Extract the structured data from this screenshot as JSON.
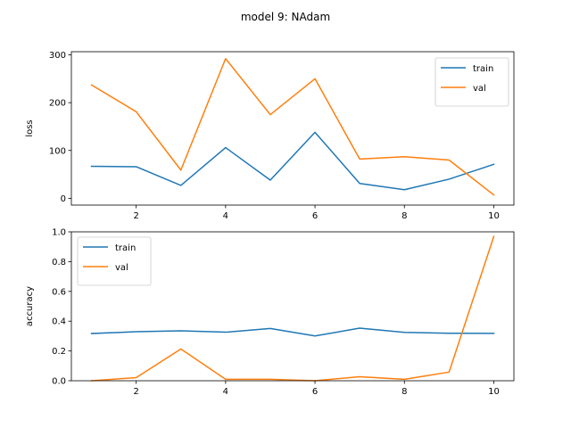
{
  "figure": {
    "title": "model 9: NAdam"
  },
  "colors": {
    "train": "#1f77b4",
    "val": "#ff7f0e"
  },
  "chart_data": [
    {
      "type": "line",
      "name": "loss-chart",
      "title": "",
      "xlabel": "",
      "ylabel": "loss",
      "x": [
        1,
        2,
        3,
        4,
        5,
        6,
        7,
        8,
        9,
        10
      ],
      "xlim": [
        0.55,
        10.45
      ],
      "ylim": [
        -14.2,
        306.5
      ],
      "xticks": [
        2,
        4,
        6,
        8,
        10
      ],
      "yticks": [
        0,
        100,
        200,
        300
      ],
      "grid": false,
      "legend": "upper-right",
      "series": [
        {
          "name": "train",
          "values": [
            67,
            66,
            27,
            106,
            38,
            138,
            31,
            18,
            40,
            71
          ]
        },
        {
          "name": "val",
          "values": [
            237,
            181,
            59,
            292,
            175,
            250,
            82,
            87,
            80,
            7
          ]
        }
      ]
    },
    {
      "type": "line",
      "name": "accuracy-chart",
      "title": "",
      "xlabel": "",
      "ylabel": "accuracy",
      "x": [
        1,
        2,
        3,
        4,
        5,
        6,
        7,
        8,
        9,
        10
      ],
      "xlim": [
        0.55,
        10.45
      ],
      "ylim": [
        0,
        1.0
      ],
      "xticks": [
        2,
        4,
        6,
        8,
        10
      ],
      "yticks": [
        0.0,
        0.2,
        0.4,
        0.6,
        0.8,
        1.0
      ],
      "ytick_labels": [
        "0.0",
        "0.2",
        "0.4",
        "0.6",
        "0.8",
        "1.0"
      ],
      "grid": false,
      "legend": "upper-left",
      "series": [
        {
          "name": "train",
          "values": [
            0.317,
            0.329,
            0.335,
            0.326,
            0.351,
            0.301,
            0.353,
            0.325,
            0.319,
            0.318
          ]
        },
        {
          "name": "val",
          "values": [
            0.0,
            0.021,
            0.213,
            0.01,
            0.01,
            0.0,
            0.027,
            0.01,
            0.058,
            0.969
          ]
        }
      ]
    }
  ]
}
